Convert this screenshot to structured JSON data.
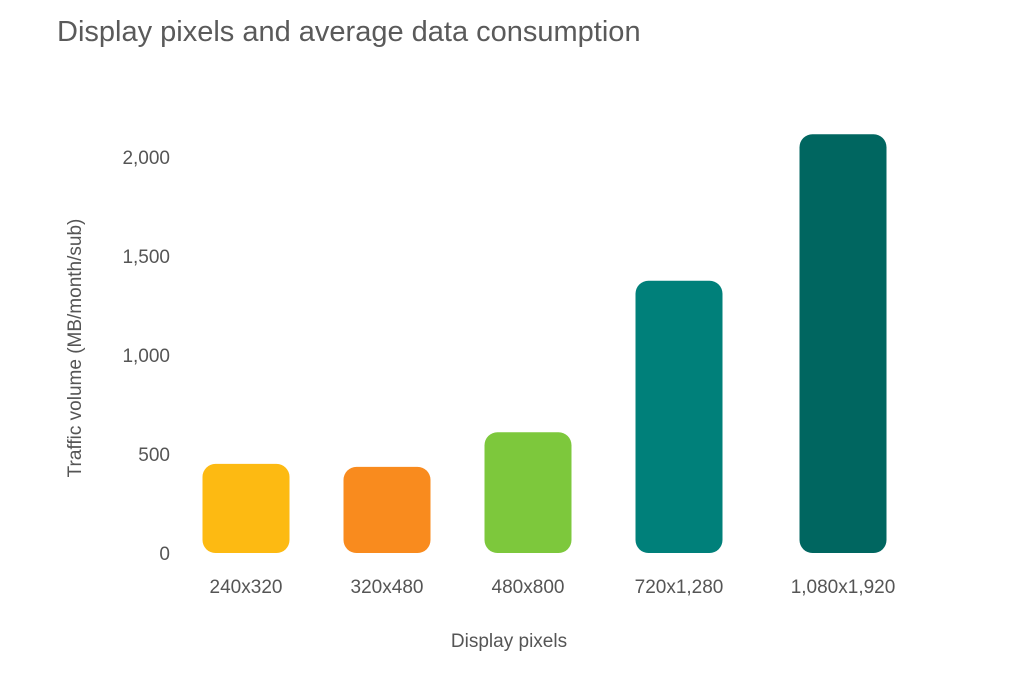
{
  "chart_data": {
    "type": "bar",
    "title": "Display pixels and average data consumption",
    "xlabel": "Display pixels",
    "ylabel": "Traffic volume (MB/month/sub)",
    "categories": [
      "240x320",
      "320x480",
      "480x800",
      "720x1,280",
      "1,080x1,920"
    ],
    "values": [
      450,
      435,
      610,
      1375,
      2115
    ],
    "colors": [
      "#FDBA12",
      "#F98B1E",
      "#7DC83C",
      "#00807A",
      "#006660"
    ],
    "ylim": [
      0,
      2000
    ],
    "yticks": [
      0,
      500,
      1000,
      1500,
      2000
    ],
    "ytick_labels": [
      "0",
      "500",
      "1,000",
      "1,500",
      "2,000"
    ],
    "grid": false
  }
}
